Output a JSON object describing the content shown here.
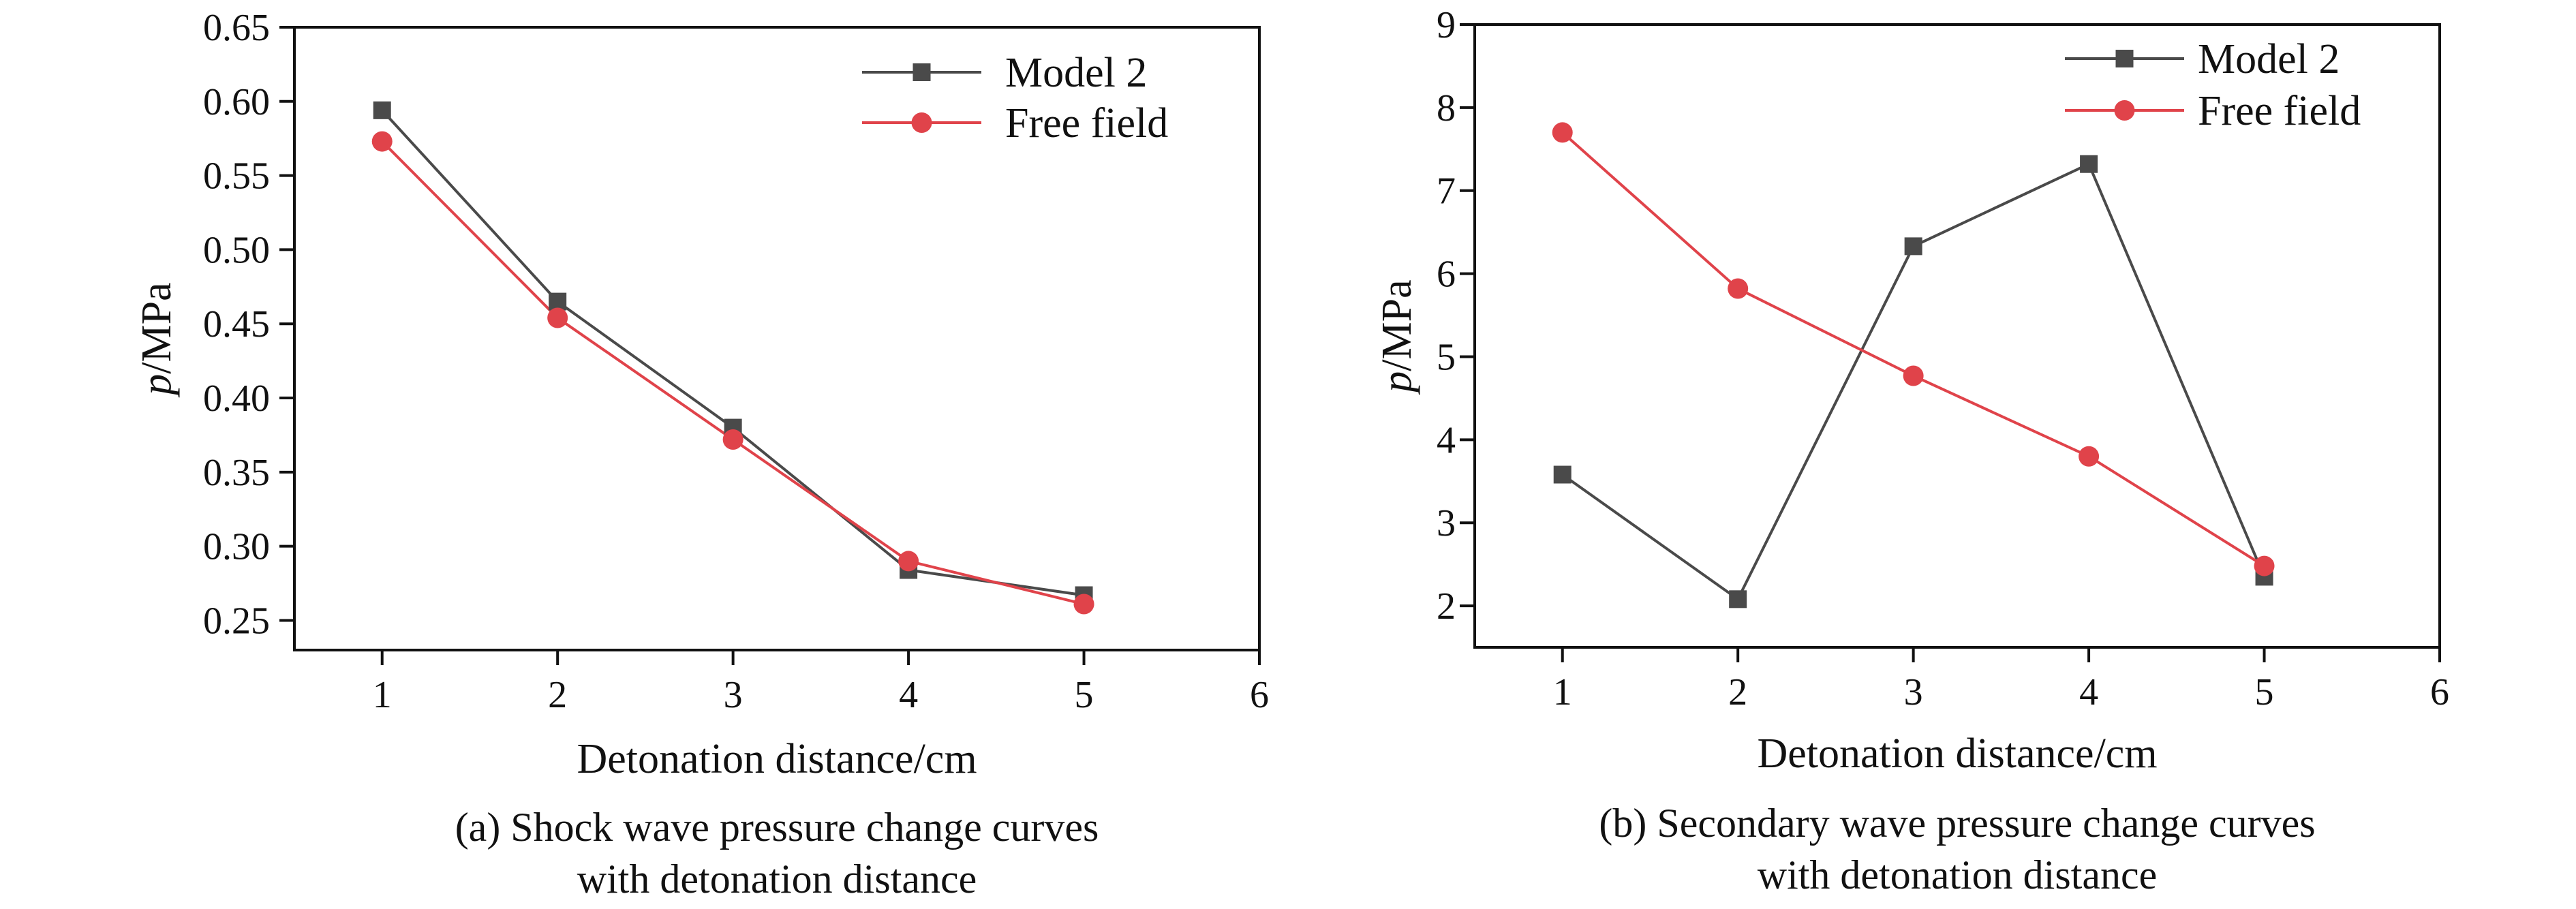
{
  "chart_data": [
    {
      "type": "line",
      "caption_lines": [
        "(a) Shock wave pressure change curves",
        "with detonation distance"
      ],
      "xlabel": "Detonation distance/cm",
      "ylabel_italic": "p",
      "ylabel_unit": "/MPa",
      "xlim": [
        0.5,
        6
      ],
      "ylim": [
        0.23,
        0.65
      ],
      "x_ticks": [
        1,
        2,
        3,
        4,
        5,
        6
      ],
      "x_tick_labels": [
        "1",
        "2",
        "3",
        "4",
        "5",
        "6"
      ],
      "y_ticks": [
        0.25,
        0.3,
        0.35,
        0.4,
        0.45,
        0.5,
        0.55,
        0.6,
        0.65
      ],
      "y_tick_labels": [
        "0.25",
        "0.30",
        "0.35",
        "0.40",
        "0.45",
        "0.50",
        "0.55",
        "0.60",
        "0.65"
      ],
      "legend_position": "top-right",
      "series": [
        {
          "name": "Model 2",
          "marker": "square",
          "color": "#4a4a4a",
          "x": [
            1,
            2,
            3,
            4,
            5
          ],
          "values": [
            0.594,
            0.465,
            0.38,
            0.284,
            0.267
          ]
        },
        {
          "name": "Free field",
          "marker": "circle",
          "color": "#e0434a",
          "x": [
            1,
            2,
            3,
            4,
            5
          ],
          "values": [
            0.573,
            0.454,
            0.372,
            0.29,
            0.261
          ]
        }
      ]
    },
    {
      "type": "line",
      "caption_lines": [
        "(b) Secondary wave pressure change curves",
        "with detonation distance"
      ],
      "xlabel": "Detonation distance/cm",
      "ylabel_italic": "p",
      "ylabel_unit": "/MPa",
      "xlim": [
        0.5,
        6
      ],
      "ylim": [
        1.5,
        9
      ],
      "x_ticks": [
        1,
        2,
        3,
        4,
        5,
        6
      ],
      "x_tick_labels": [
        "1",
        "2",
        "3",
        "4",
        "5",
        "6"
      ],
      "y_ticks": [
        2,
        3,
        4,
        5,
        6,
        7,
        8,
        9
      ],
      "y_tick_labels": [
        "2",
        "3",
        "4",
        "5",
        "6",
        "7",
        "8",
        "9"
      ],
      "legend_position": "top-right",
      "series": [
        {
          "name": "Model 2",
          "marker": "square",
          "color": "#4a4a4a",
          "x": [
            1,
            2,
            3,
            4,
            5
          ],
          "values": [
            3.58,
            2.08,
            6.33,
            7.32,
            2.35
          ]
        },
        {
          "name": "Free field",
          "marker": "circle",
          "color": "#e0434a",
          "x": [
            1,
            2,
            3,
            4,
            5
          ],
          "values": [
            7.7,
            5.82,
            4.77,
            3.8,
            2.48
          ]
        }
      ]
    }
  ]
}
